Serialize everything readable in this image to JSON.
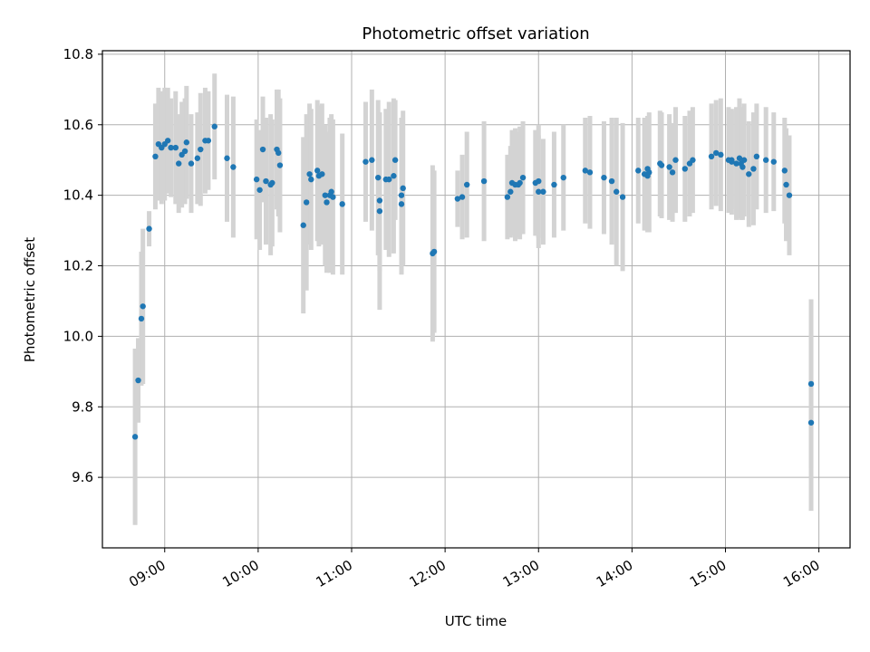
{
  "chart_data": {
    "type": "scatter",
    "title": "Photometric offset variation",
    "xlabel": "UTC time",
    "ylabel": "Photometric offset",
    "x_ticks": [
      "09:00",
      "10:00",
      "11:00",
      "12:00",
      "13:00",
      "14:00",
      "15:00",
      "16:00"
    ],
    "y_ticks": [
      "9.6",
      "9.8",
      "10.0",
      "10.2",
      "10.4",
      "10.6",
      "10.8"
    ],
    "xlim": [
      "08:20",
      "16:20"
    ],
    "ylim": [
      9.4,
      10.81
    ],
    "grid": true,
    "colors": {
      "marker": "#1f77b4",
      "errorbar": "#d3d3d3",
      "grid": "#b0b0b0"
    },
    "series": [
      {
        "points": [
          {
            "x": "08:41",
            "y": 9.715,
            "err": 0.25
          },
          {
            "x": "08:43",
            "y": 9.875,
            "err": 0.12
          },
          {
            "x": "08:45",
            "y": 10.05,
            "err": 0.19
          },
          {
            "x": "08:46",
            "y": 10.085,
            "err": 0.22
          },
          {
            "x": "08:50",
            "y": 10.305,
            "err": 0.05
          },
          {
            "x": "08:54",
            "y": 10.51,
            "err": 0.15
          },
          {
            "x": "08:56",
            "y": 10.545,
            "err": 0.16
          },
          {
            "x": "08:58",
            "y": 10.535,
            "err": 0.16
          },
          {
            "x": "09:00",
            "y": 10.545,
            "err": 0.16
          },
          {
            "x": "09:02",
            "y": 10.555,
            "err": 0.15
          },
          {
            "x": "09:04",
            "y": 10.535,
            "err": 0.14
          },
          {
            "x": "09:07",
            "y": 10.535,
            "err": 0.16
          },
          {
            "x": "09:09",
            "y": 10.49,
            "err": 0.14
          },
          {
            "x": "09:11",
            "y": 10.515,
            "err": 0.15
          },
          {
            "x": "09:13",
            "y": 10.525,
            "err": 0.15
          },
          {
            "x": "09:14",
            "y": 10.55,
            "err": 0.16
          },
          {
            "x": "09:17",
            "y": 10.49,
            "err": 0.14
          },
          {
            "x": "09:21",
            "y": 10.505,
            "err": 0.13
          },
          {
            "x": "09:23",
            "y": 10.53,
            "err": 0.16
          },
          {
            "x": "09:26",
            "y": 10.555,
            "err": 0.15
          },
          {
            "x": "09:28",
            "y": 10.555,
            "err": 0.14
          },
          {
            "x": "09:32",
            "y": 10.595,
            "err": 0.15
          },
          {
            "x": "09:40",
            "y": 10.505,
            "err": 0.18
          },
          {
            "x": "09:44",
            "y": 10.48,
            "err": 0.2
          },
          {
            "x": "09:59",
            "y": 10.445,
            "err": 0.17
          },
          {
            "x": "10:01",
            "y": 10.415,
            "err": 0.17
          },
          {
            "x": "10:03",
            "y": 10.53,
            "err": 0.15
          },
          {
            "x": "10:05",
            "y": 10.44,
            "err": 0.18
          },
          {
            "x": "10:08",
            "y": 10.43,
            "err": 0.2
          },
          {
            "x": "10:09",
            "y": 10.435,
            "err": 0.18
          },
          {
            "x": "10:12",
            "y": 10.53,
            "err": 0.17
          },
          {
            "x": "10:13",
            "y": 10.52,
            "err": 0.18
          },
          {
            "x": "10:14",
            "y": 10.485,
            "err": 0.19
          },
          {
            "x": "10:29",
            "y": 10.315,
            "err": 0.25
          },
          {
            "x": "10:31",
            "y": 10.38,
            "err": 0.25
          },
          {
            "x": "10:33",
            "y": 10.46,
            "err": 0.2
          },
          {
            "x": "10:34",
            "y": 10.445,
            "err": 0.2
          },
          {
            "x": "10:38",
            "y": 10.47,
            "err": 0.2
          },
          {
            "x": "10:39",
            "y": 10.455,
            "err": 0.2
          },
          {
            "x": "10:41",
            "y": 10.46,
            "err": 0.2
          },
          {
            "x": "10:43",
            "y": 10.4,
            "err": 0.2
          },
          {
            "x": "10:44",
            "y": 10.38,
            "err": 0.2
          },
          {
            "x": "10:46",
            "y": 10.4,
            "err": 0.22
          },
          {
            "x": "10:47",
            "y": 10.41,
            "err": 0.22
          },
          {
            "x": "10:48",
            "y": 10.395,
            "err": 0.22
          },
          {
            "x": "10:54",
            "y": 10.375,
            "err": 0.2
          },
          {
            "x": "11:09",
            "y": 10.495,
            "err": 0.17
          },
          {
            "x": "11:13",
            "y": 10.5,
            "err": 0.2
          },
          {
            "x": "11:17",
            "y": 10.45,
            "err": 0.22
          },
          {
            "x": "11:18",
            "y": 10.385,
            "err": 0.2
          },
          {
            "x": "11:18",
            "y": 10.355,
            "err": 0.28
          },
          {
            "x": "11:22",
            "y": 10.445,
            "err": 0.2
          },
          {
            "x": "11:24",
            "y": 10.445,
            "err": 0.22
          },
          {
            "x": "11:27",
            "y": 10.455,
            "err": 0.22
          },
          {
            "x": "11:28",
            "y": 10.5,
            "err": 0.17
          },
          {
            "x": "11:32",
            "y": 10.375,
            "err": 0.2
          },
          {
            "x": "11:32",
            "y": 10.4,
            "err": 0.22
          },
          {
            "x": "11:33",
            "y": 10.42,
            "err": 0.22
          },
          {
            "x": "11:52",
            "y": 10.235,
            "err": 0.25
          },
          {
            "x": "11:53",
            "y": 10.24,
            "err": 0.23
          },
          {
            "x": "12:08",
            "y": 10.39,
            "err": 0.08
          },
          {
            "x": "12:11",
            "y": 10.395,
            "err": 0.12
          },
          {
            "x": "12:14",
            "y": 10.43,
            "err": 0.15
          },
          {
            "x": "12:25",
            "y": 10.44,
            "err": 0.17
          },
          {
            "x": "12:40",
            "y": 10.395,
            "err": 0.12
          },
          {
            "x": "12:42",
            "y": 10.41,
            "err": 0.13
          },
          {
            "x": "12:43",
            "y": 10.435,
            "err": 0.15
          },
          {
            "x": "12:45",
            "y": 10.43,
            "err": 0.16
          },
          {
            "x": "12:47",
            "y": 10.43,
            "err": 0.15
          },
          {
            "x": "12:48",
            "y": 10.435,
            "err": 0.16
          },
          {
            "x": "12:50",
            "y": 10.45,
            "err": 0.16
          },
          {
            "x": "12:58",
            "y": 10.435,
            "err": 0.15
          },
          {
            "x": "13:00",
            "y": 10.44,
            "err": 0.16
          },
          {
            "x": "13:00",
            "y": 10.41,
            "err": 0.16
          },
          {
            "x": "13:03",
            "y": 10.41,
            "err": 0.15
          },
          {
            "x": "13:10",
            "y": 10.43,
            "err": 0.15
          },
          {
            "x": "13:16",
            "y": 10.45,
            "err": 0.15
          },
          {
            "x": "13:30",
            "y": 10.47,
            "err": 0.15
          },
          {
            "x": "13:33",
            "y": 10.465,
            "err": 0.16
          },
          {
            "x": "13:42",
            "y": 10.45,
            "err": 0.16
          },
          {
            "x": "13:47",
            "y": 10.44,
            "err": 0.18
          },
          {
            "x": "13:50",
            "y": 10.41,
            "err": 0.21
          },
          {
            "x": "13:54",
            "y": 10.395,
            "err": 0.21
          },
          {
            "x": "14:04",
            "y": 10.47,
            "err": 0.15
          },
          {
            "x": "14:08",
            "y": 10.46,
            "err": 0.16
          },
          {
            "x": "14:10",
            "y": 10.475,
            "err": 0.15
          },
          {
            "x": "14:10",
            "y": 10.455,
            "err": 0.16
          },
          {
            "x": "14:11",
            "y": 10.465,
            "err": 0.17
          },
          {
            "x": "14:18",
            "y": 10.49,
            "err": 0.15
          },
          {
            "x": "14:19",
            "y": 10.485,
            "err": 0.15
          },
          {
            "x": "14:24",
            "y": 10.48,
            "err": 0.15
          },
          {
            "x": "14:26",
            "y": 10.465,
            "err": 0.14
          },
          {
            "x": "14:28",
            "y": 10.5,
            "err": 0.15
          },
          {
            "x": "14:34",
            "y": 10.475,
            "err": 0.15
          },
          {
            "x": "14:37",
            "y": 10.49,
            "err": 0.15
          },
          {
            "x": "14:39",
            "y": 10.5,
            "err": 0.15
          },
          {
            "x": "14:51",
            "y": 10.51,
            "err": 0.15
          },
          {
            "x": "14:54",
            "y": 10.52,
            "err": 0.15
          },
          {
            "x": "14:57",
            "y": 10.515,
            "err": 0.16
          },
          {
            "x": "15:02",
            "y": 10.5,
            "err": 0.15
          },
          {
            "x": "15:04",
            "y": 10.495,
            "err": 0.15
          },
          {
            "x": "15:04",
            "y": 10.5,
            "err": 0.14
          },
          {
            "x": "15:07",
            "y": 10.49,
            "err": 0.16
          },
          {
            "x": "15:09",
            "y": 10.505,
            "err": 0.17
          },
          {
            "x": "15:10",
            "y": 10.49,
            "err": 0.16
          },
          {
            "x": "15:11",
            "y": 10.48,
            "err": 0.15
          },
          {
            "x": "15:12",
            "y": 10.5,
            "err": 0.16
          },
          {
            "x": "15:15",
            "y": 10.46,
            "err": 0.15
          },
          {
            "x": "15:18",
            "y": 10.475,
            "err": 0.16
          },
          {
            "x": "15:20",
            "y": 10.51,
            "err": 0.15
          },
          {
            "x": "15:26",
            "y": 10.5,
            "err": 0.15
          },
          {
            "x": "15:31",
            "y": 10.495,
            "err": 0.14
          },
          {
            "x": "15:38",
            "y": 10.47,
            "err": 0.15
          },
          {
            "x": "15:39",
            "y": 10.43,
            "err": 0.16
          },
          {
            "x": "15:41",
            "y": 10.4,
            "err": 0.17
          },
          {
            "x": "15:55",
            "y": 9.865,
            "err": 0.24
          },
          {
            "x": "15:55",
            "y": 9.755,
            "err": 0.25
          }
        ]
      }
    ]
  }
}
